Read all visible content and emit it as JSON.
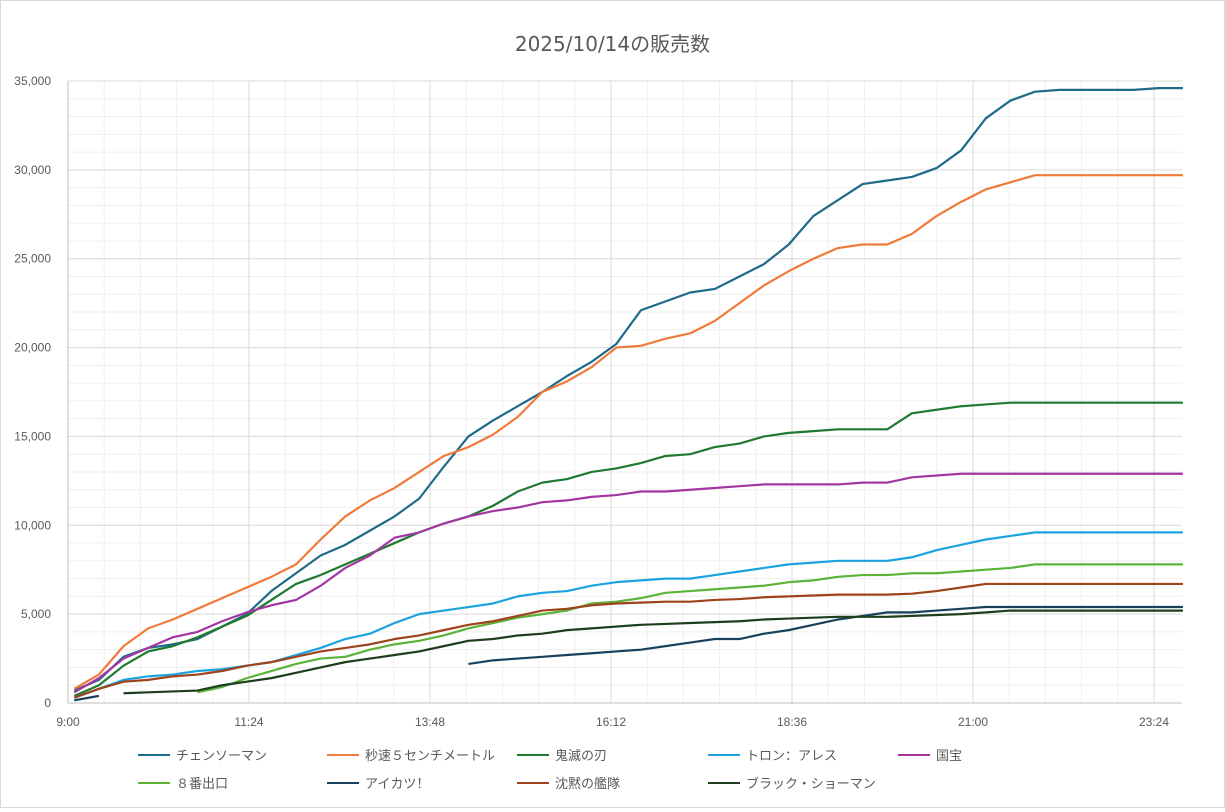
{
  "chart_data": {
    "type": "line",
    "title": "2025/10/14の販売数",
    "xlabel": "",
    "ylabel": "",
    "x_start": "9:05",
    "x_step_minutes": 19.6,
    "x_range": [
      "9:00",
      "23:50"
    ],
    "xticks": [
      "9:00",
      "11:24",
      "13:48",
      "16:12",
      "18:36",
      "21:00",
      "23:24"
    ],
    "ylim": [
      0,
      35000
    ],
    "yticks": [
      "0",
      "5,000",
      "10,000",
      "15,000",
      "20,000",
      "25,000",
      "30,000",
      "35,000"
    ],
    "grid": true,
    "legend_position": "bottom",
    "series": [
      {
        "name": "チェンソーマン",
        "color": "#1f6a8a",
        "values": [
          700,
          1300,
          2600,
          3100,
          3300,
          3600,
          4300,
          5000,
          6300,
          7300,
          8300,
          8900,
          9700,
          10500,
          11500,
          13300,
          15000,
          15900,
          16700,
          17500,
          18400,
          19200,
          20200,
          22100,
          22600,
          23100,
          23300,
          24000,
          24700,
          25800,
          27400,
          28300,
          29200,
          29400,
          29600,
          30100,
          31100,
          32900,
          33900,
          34400,
          34500,
          34500,
          34500,
          34500,
          34600,
          34600
        ]
      },
      {
        "name": "秒速５センチメートル",
        "color": "#ef7b3b",
        "values": [
          800,
          1600,
          3200,
          4200,
          4700,
          5300,
          5900,
          6500,
          7100,
          7800,
          9200,
          10500,
          11400,
          12100,
          13000,
          13900,
          14400,
          15100,
          16100,
          17500,
          18100,
          18900,
          20000,
          20100,
          20500,
          20800,
          21500,
          22500,
          23500,
          24300,
          25000,
          25600,
          25800,
          25800,
          26400,
          27400,
          28200,
          28900,
          29300,
          29700,
          29700,
          29700,
          29700,
          29700,
          29700,
          29700
        ]
      },
      {
        "name": "鬼滅の刃",
        "color": "#1f7a30",
        "values": [
          400,
          1000,
          2100,
          2900,
          3200,
          3700,
          4300,
          4900,
          5800,
          6700,
          7200,
          7800,
          8400,
          9000,
          9600,
          10100,
          10500,
          11100,
          11900,
          12400,
          12600,
          13000,
          13200,
          13500,
          13900,
          14000,
          14400,
          14600,
          15000,
          15200,
          15300,
          15400,
          15400,
          15400,
          16300,
          16500,
          16700,
          16800,
          16900,
          16900,
          16900,
          16900,
          16900,
          16900,
          16900,
          16900
        ]
      },
      {
        "name": "トロン：アレス",
        "color": "#1ba3df",
        "values": [
          300,
          800,
          1300,
          1500,
          1600,
          1800,
          1900,
          2100,
          2300,
          2700,
          3100,
          3600,
          3900,
          4500,
          5000,
          5200,
          5400,
          5600,
          6000,
          6200,
          6300,
          6600,
          6800,
          6900,
          7000,
          7000,
          7200,
          7400,
          7600,
          7800,
          7900,
          8000,
          8000,
          8000,
          8200,
          8600,
          8900,
          9200,
          9400,
          9600,
          9600,
          9600,
          9600,
          9600,
          9600,
          9600
        ]
      },
      {
        "name": "国宝",
        "color": "#a436a4",
        "values": [
          600,
          1400,
          2500,
          3100,
          3700,
          4000,
          4600,
          5100,
          5500,
          5800,
          6600,
          7600,
          8300,
          9300,
          9600,
          10100,
          10500,
          10800,
          11000,
          11300,
          11400,
          11600,
          11700,
          11900,
          11900,
          12000,
          12100,
          12200,
          12300,
          12300,
          12300,
          12300,
          12400,
          12400,
          12700,
          12800,
          12900,
          12900,
          12900,
          12900,
          12900,
          12900,
          12900,
          12900,
          12900,
          12900
        ]
      },
      {
        "name": "８番出口",
        "color": "#5bb339",
        "values": [
          null,
          null,
          null,
          null,
          null,
          600,
          900,
          1400,
          1800,
          2200,
          2500,
          2600,
          3000,
          3300,
          3500,
          3800,
          4200,
          4500,
          4800,
          5000,
          5200,
          5600,
          5700,
          5900,
          6200,
          6300,
          6400,
          6500,
          6600,
          6800,
          6900,
          7100,
          7200,
          7200,
          7300,
          7300,
          7400,
          7500,
          7600,
          7800,
          7800,
          7800,
          7800,
          7800,
          7800,
          7800
        ]
      },
      {
        "name": "アイカツ！",
        "color": "#17415c",
        "values": [
          150,
          400,
          null,
          null,
          null,
          null,
          null,
          null,
          null,
          null,
          null,
          null,
          null,
          null,
          null,
          null,
          2200,
          2400,
          2500,
          2600,
          2700,
          2800,
          2900,
          3000,
          3200,
          3400,
          3600,
          3600,
          3900,
          4100,
          4400,
          4700,
          4900,
          5100,
          5100,
          5200,
          5300,
          5400,
          5400,
          5400,
          5400,
          5400,
          5400,
          5400,
          5400,
          5400
        ]
      },
      {
        "name": "沈黙の艦隊",
        "color": "#9e431c",
        "values": [
          300,
          800,
          1200,
          1300,
          1500,
          1600,
          1800,
          2100,
          2300,
          2600,
          2900,
          3100,
          3300,
          3600,
          3800,
          4100,
          4400,
          4600,
          4900,
          5200,
          5300,
          5500,
          5600,
          5650,
          5700,
          5700,
          5800,
          5850,
          5950,
          6000,
          6050,
          6100,
          6100,
          6100,
          6150,
          6300,
          6500,
          6700,
          6700,
          6700,
          6700,
          6700,
          6700,
          6700,
          6700,
          6700
        ]
      },
      {
        "name": "ブラック・ショーマン",
        "color": "#1d3e1d",
        "values": [
          null,
          null,
          550,
          600,
          650,
          700,
          1000,
          1200,
          1400,
          1700,
          2000,
          2300,
          2500,
          2700,
          2900,
          3200,
          3500,
          3600,
          3800,
          3900,
          4100,
          4200,
          4300,
          4400,
          4450,
          4500,
          4550,
          4600,
          4700,
          4750,
          4800,
          4850,
          4850,
          4850,
          4900,
          4950,
          5000,
          5100,
          5200,
          5200,
          5200,
          5200,
          5200,
          5200,
          5200,
          5200
        ]
      }
    ]
  }
}
